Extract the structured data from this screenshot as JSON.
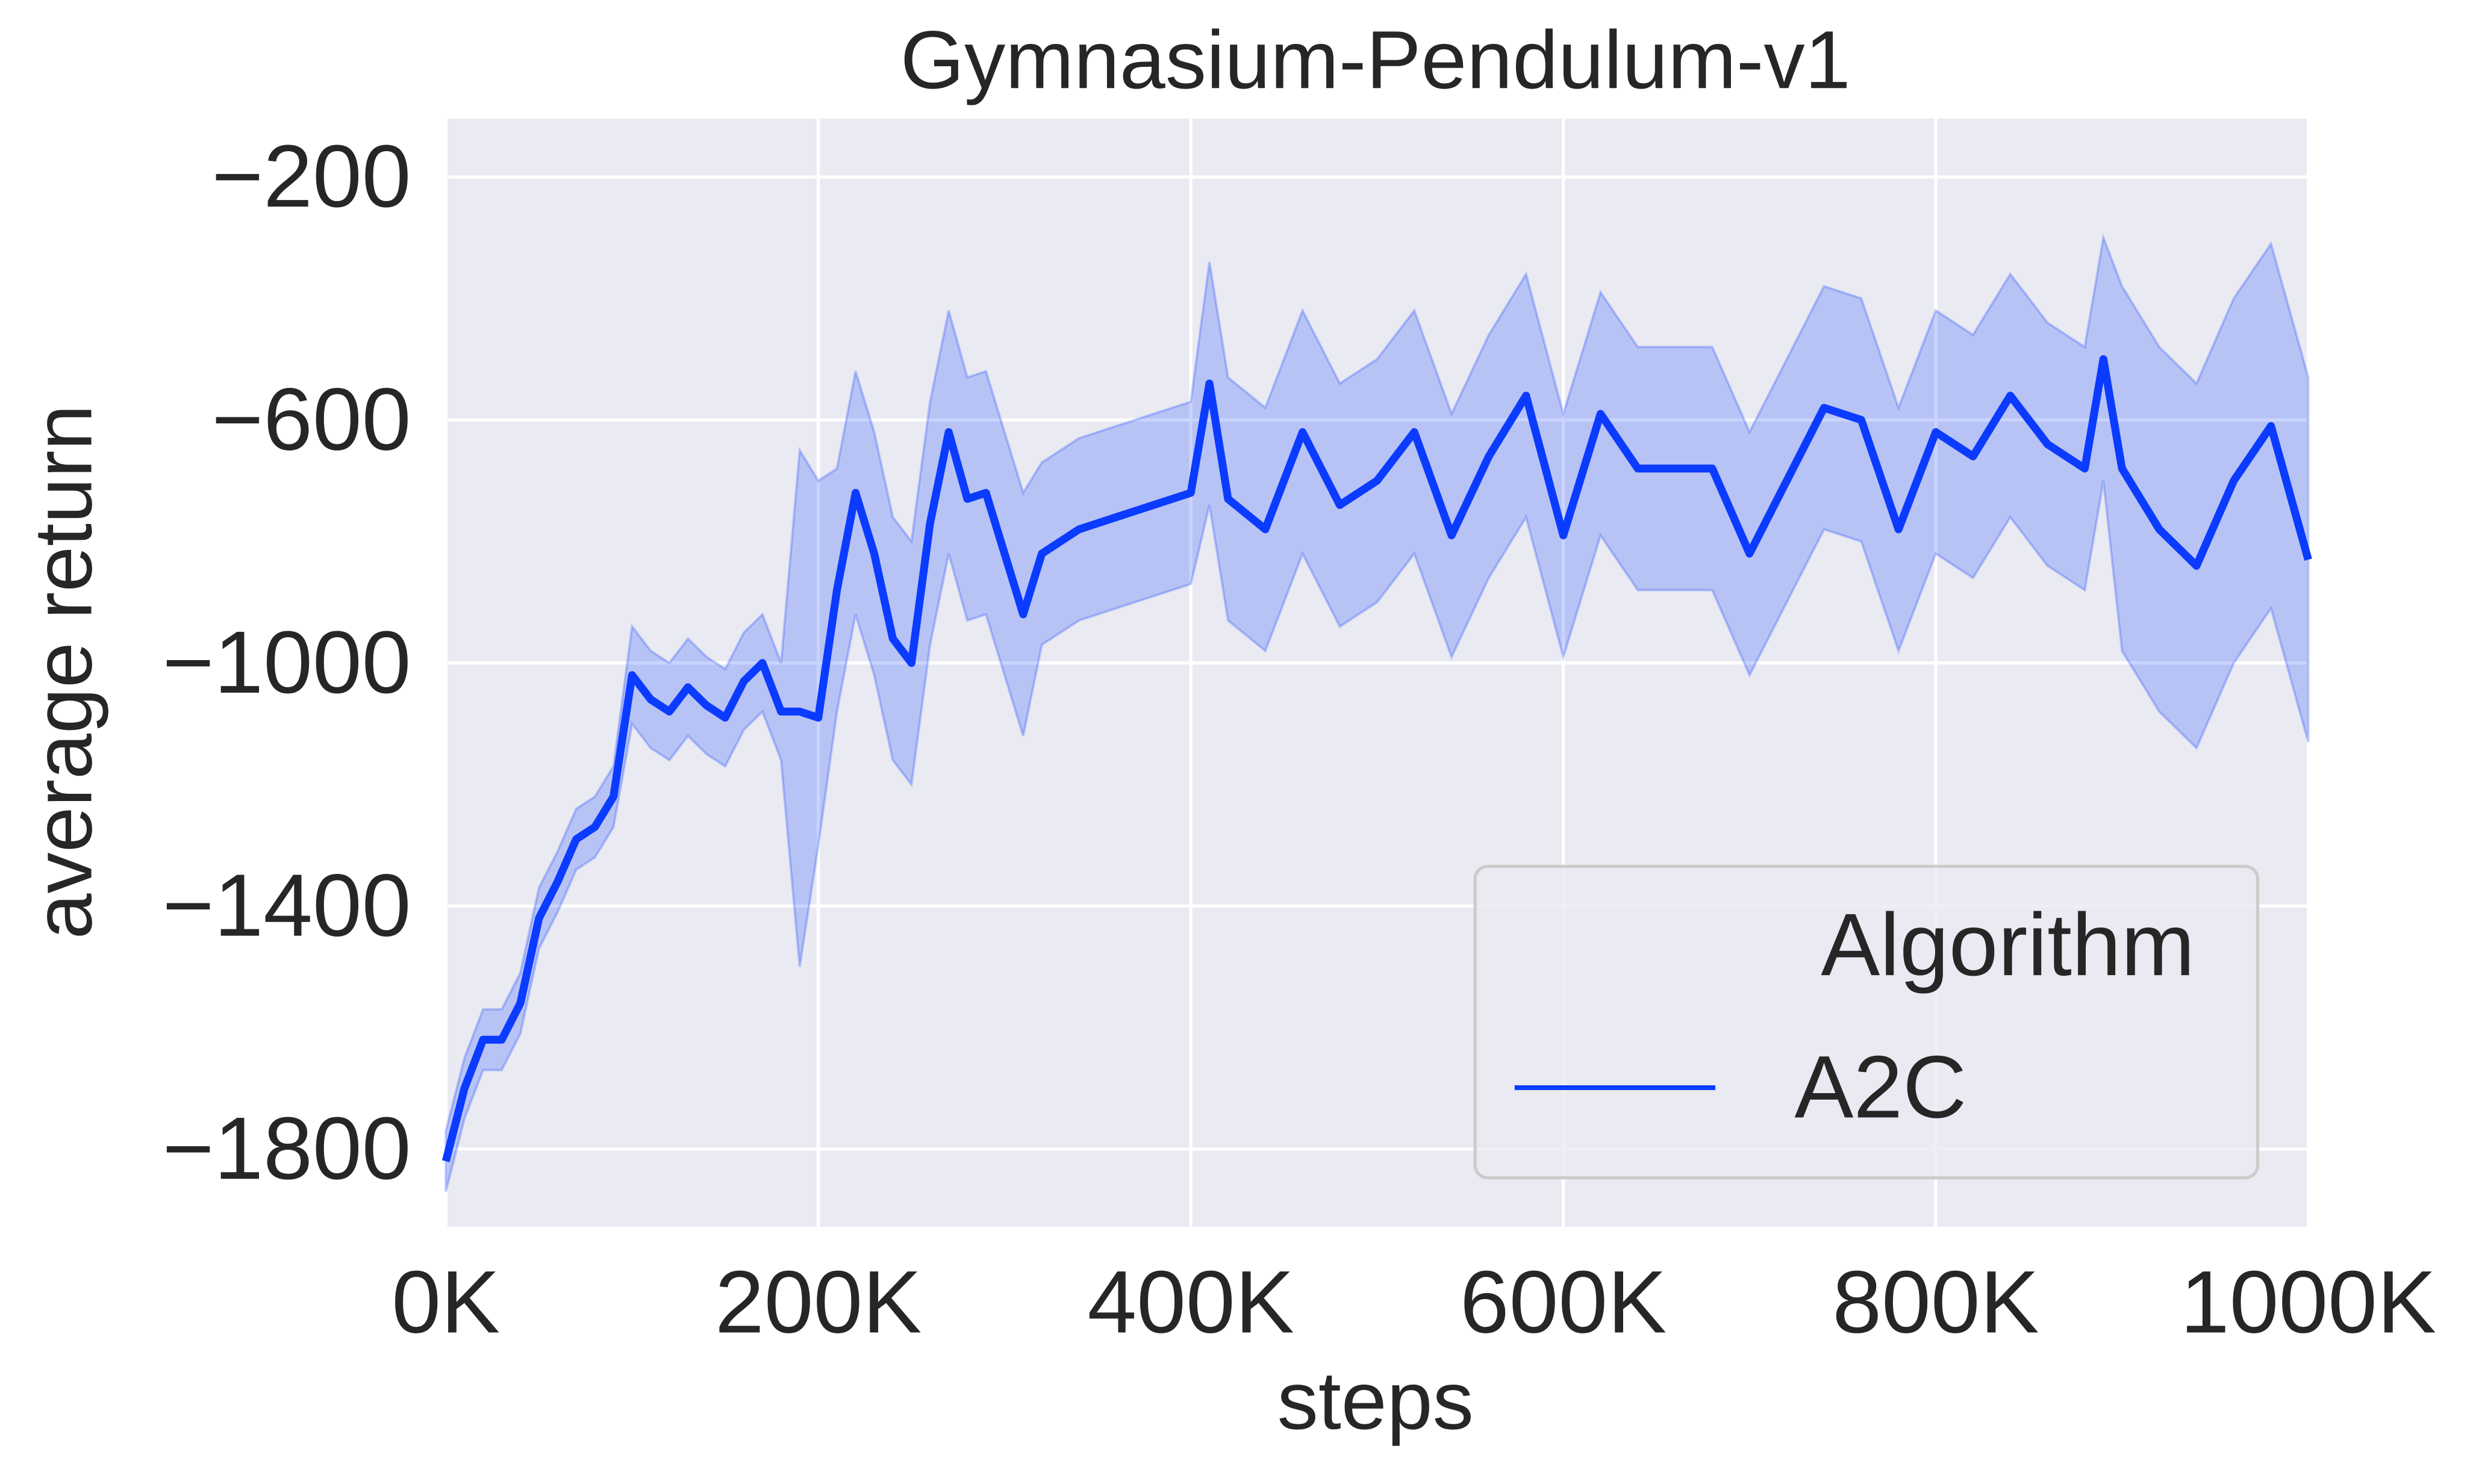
{
  "chart_data": {
    "type": "line",
    "title": "Gymnasium-Pendulum-v1",
    "xlabel": "steps",
    "ylabel": "average return",
    "x": [
      0,
      10000,
      20000,
      30000,
      40000,
      50000,
      60000,
      70000,
      80000,
      90000,
      100000,
      110000,
      120000,
      130000,
      140000,
      150000,
      160000,
      170000,
      180000,
      190000,
      200000,
      210000,
      220000,
      230000,
      240000,
      250000,
      260000,
      270000,
      280000,
      290000,
      300000,
      310000,
      320000,
      340000,
      360000,
      380000,
      400000,
      410000,
      420000,
      440000,
      460000,
      480000,
      500000,
      520000,
      540000,
      560000,
      580000,
      600000,
      620000,
      640000,
      660000,
      680000,
      700000,
      720000,
      740000,
      760000,
      780000,
      800000,
      820000,
      840000,
      860000,
      880000,
      890000,
      900000,
      920000,
      940000,
      960000,
      980000,
      1000000
    ],
    "series": [
      {
        "name": "A2C",
        "color": "#0b3bff",
        "values": [
          -1820,
          -1700,
          -1620,
          -1620,
          -1560,
          -1420,
          -1360,
          -1290,
          -1270,
          -1220,
          -1020,
          -1060,
          -1080,
          -1040,
          -1070,
          -1090,
          -1030,
          -1000,
          -1080,
          -1080,
          -1090,
          -880,
          -720,
          -820,
          -960,
          -1000,
          -770,
          -620,
          -730,
          -720,
          -820,
          -920,
          -820,
          -780,
          -760,
          -740,
          -720,
          -540,
          -730,
          -780,
          -620,
          -740,
          -700,
          -620,
          -790,
          -660,
          -560,
          -790,
          -590,
          -680,
          -680,
          -680,
          -820,
          -700,
          -580,
          -600,
          -780,
          -620,
          -660,
          -560,
          -640,
          -680,
          -500,
          -680,
          -780,
          -840,
          -700,
          -610,
          -830
        ],
        "upper": [
          -1770,
          -1650,
          -1570,
          -1570,
          -1510,
          -1370,
          -1310,
          -1240,
          -1220,
          -1170,
          -940,
          -980,
          -1000,
          -960,
          -990,
          -1010,
          -950,
          -920,
          -1000,
          -650,
          -700,
          -680,
          -520,
          -620,
          -760,
          -800,
          -570,
          -420,
          -530,
          -520,
          -620,
          -720,
          -670,
          -630,
          -610,
          -590,
          -570,
          -340,
          -530,
          -580,
          -420,
          -540,
          -500,
          -420,
          -590,
          -460,
          -360,
          -590,
          -390,
          -480,
          -480,
          -480,
          -620,
          -500,
          -380,
          -400,
          -580,
          -420,
          -460,
          -360,
          -440,
          -480,
          -300,
          -380,
          -480,
          -540,
          -400,
          -310,
          -530
        ],
        "lower": [
          -1870,
          -1750,
          -1670,
          -1670,
          -1610,
          -1470,
          -1410,
          -1340,
          -1320,
          -1270,
          -1100,
          -1140,
          -1160,
          -1120,
          -1150,
          -1170,
          -1110,
          -1080,
          -1160,
          -1500,
          -1300,
          -1080,
          -920,
          -1020,
          -1160,
          -1200,
          -970,
          -820,
          -930,
          -920,
          -1020,
          -1120,
          -970,
          -930,
          -910,
          -890,
          -870,
          -740,
          -930,
          -980,
          -820,
          -940,
          -900,
          -820,
          -990,
          -860,
          -760,
          -990,
          -790,
          -880,
          -880,
          -880,
          -1020,
          -900,
          -780,
          -800,
          -980,
          -820,
          -860,
          -760,
          -840,
          -880,
          -700,
          -980,
          -1080,
          -1140,
          -1000,
          -910,
          -1130
        ]
      }
    ],
    "xlim": [
      0,
      1000000
    ],
    "xticks": [
      {
        "value": 0,
        "label": "0K"
      },
      {
        "value": 200000,
        "label": "200K"
      },
      {
        "value": 400000,
        "label": "400K"
      },
      {
        "value": 600000,
        "label": "600K"
      },
      {
        "value": 800000,
        "label": "800K"
      },
      {
        "value": 1000000,
        "label": "1000K"
      }
    ],
    "ylim": [
      -1928,
      -104
    ],
    "yticks": [
      {
        "value": -200,
        "label": "−200"
      },
      {
        "value": -600,
        "label": "−600"
      },
      {
        "value": -1000,
        "label": "−1000"
      },
      {
        "value": -1400,
        "label": "−1400"
      },
      {
        "value": -1800,
        "label": "−1800"
      }
    ],
    "grid": true,
    "legend": "lower right",
    "legend_title": "Algorithm"
  }
}
